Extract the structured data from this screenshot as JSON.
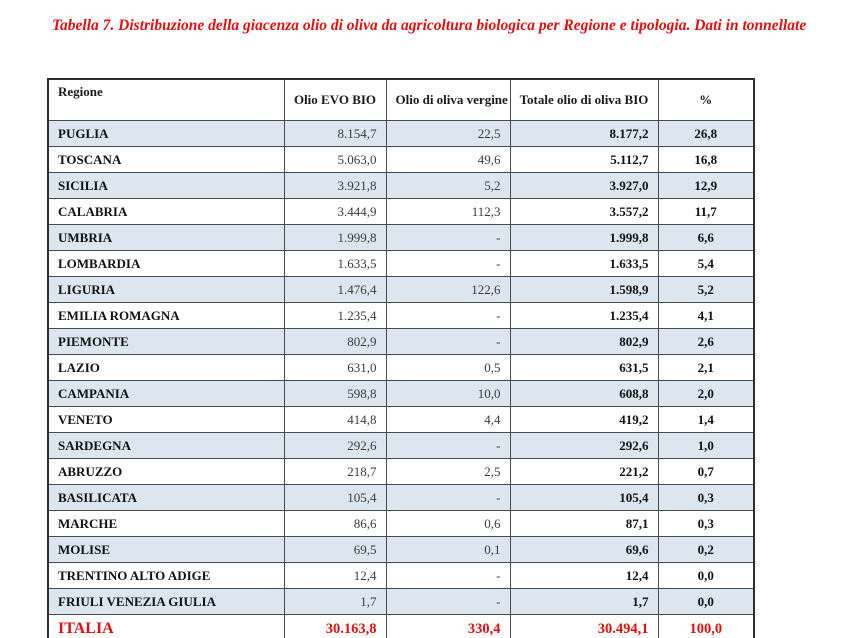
{
  "title": "Tabella 7. Distribuzione della giacenza olio di oliva da agricoltura biologica per Regione e tipologia. Dati in tonnellate",
  "colors": {
    "accent_red": "#e01010",
    "row_alternate_blue": "#dce6f1",
    "border": "#4a4a4a"
  },
  "table": {
    "columns": [
      "Regione",
      "Olio EVO BIO",
      "Olio di oliva vergine BIO",
      "Totale olio di oliva BIO",
      "%"
    ],
    "rows": [
      {
        "regione": "PUGLIA",
        "evo": "8.154,7",
        "vergine": "22,5",
        "totale": "8.177,2",
        "pct": "26,8"
      },
      {
        "regione": "TOSCANA",
        "evo": "5.063,0",
        "vergine": "49,6",
        "totale": "5.112,7",
        "pct": "16,8"
      },
      {
        "regione": "SICILIA",
        "evo": "3.921,8",
        "vergine": "5,2",
        "totale": "3.927,0",
        "pct": "12,9"
      },
      {
        "regione": "CALABRIA",
        "evo": "3.444,9",
        "vergine": "112,3",
        "totale": "3.557,2",
        "pct": "11,7"
      },
      {
        "regione": "UMBRIA",
        "evo": "1.999,8",
        "vergine": "-",
        "totale": "1.999,8",
        "pct": "6,6"
      },
      {
        "regione": "LOMBARDIA",
        "evo": "1.633,5",
        "vergine": "-",
        "totale": "1.633,5",
        "pct": "5,4"
      },
      {
        "regione": "LIGURIA",
        "evo": "1.476,4",
        "vergine": "122,6",
        "totale": "1.598,9",
        "pct": "5,2"
      },
      {
        "regione": "EMILIA ROMAGNA",
        "evo": "1.235,4",
        "vergine": "-",
        "totale": "1.235,4",
        "pct": "4,1"
      },
      {
        "regione": "PIEMONTE",
        "evo": "802,9",
        "vergine": "-",
        "totale": "802,9",
        "pct": "2,6"
      },
      {
        "regione": "LAZIO",
        "evo": "631,0",
        "vergine": "0,5",
        "totale": "631,5",
        "pct": "2,1"
      },
      {
        "regione": "CAMPANIA",
        "evo": "598,8",
        "vergine": "10,0",
        "totale": "608,8",
        "pct": "2,0"
      },
      {
        "regione": "VENETO",
        "evo": "414,8",
        "vergine": "4,4",
        "totale": "419,2",
        "pct": "1,4"
      },
      {
        "regione": "SARDEGNA",
        "evo": "292,6",
        "vergine": "-",
        "totale": "292,6",
        "pct": "1,0"
      },
      {
        "regione": "ABRUZZO",
        "evo": "218,7",
        "vergine": "2,5",
        "totale": "221,2",
        "pct": "0,7"
      },
      {
        "regione": "BASILICATA",
        "evo": "105,4",
        "vergine": "-",
        "totale": "105,4",
        "pct": "0,3"
      },
      {
        "regione": "MARCHE",
        "evo": "86,6",
        "vergine": "0,6",
        "totale": "87,1",
        "pct": "0,3"
      },
      {
        "regione": "MOLISE",
        "evo": "69,5",
        "vergine": "0,1",
        "totale": "69,6",
        "pct": "0,2"
      },
      {
        "regione": "TRENTINO ALTO ADIGE",
        "evo": "12,4",
        "vergine": "-",
        "totale": "12,4",
        "pct": "0,0"
      },
      {
        "regione": "FRIULI VENEZIA GIULIA",
        "evo": "1,7",
        "vergine": "-",
        "totale": "1,7",
        "pct": "0,0"
      }
    ],
    "total_row": {
      "regione": "ITALIA",
      "evo": "30.163,8",
      "vergine": "330,4",
      "totale": "30.494,1",
      "pct": "100,0"
    }
  }
}
